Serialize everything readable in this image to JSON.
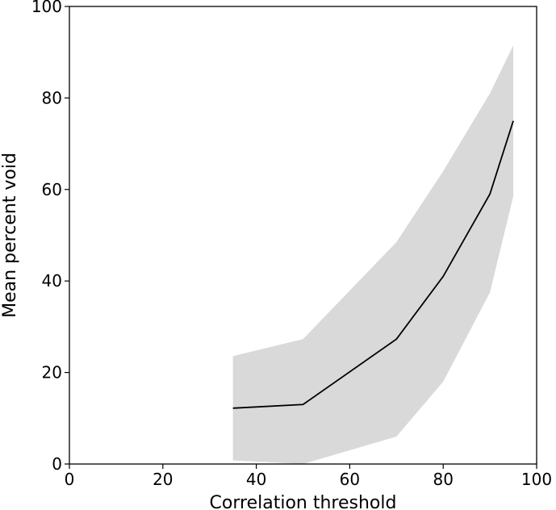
{
  "chart_data": {
    "type": "line",
    "xlabel": "Correlation threshold",
    "ylabel": "Mean percent void",
    "xlim": [
      0,
      100
    ],
    "ylim": [
      0,
      100
    ],
    "x_ticks": [
      0,
      20,
      40,
      60,
      80,
      100
    ],
    "y_ticks": [
      0,
      20,
      40,
      60,
      80,
      100
    ],
    "grid": false,
    "series": [
      {
        "x": [
          35,
          50,
          70,
          80,
          90,
          95
        ],
        "y": [
          12.2,
          13.0,
          27.3,
          41.0,
          59.0,
          75.0
        ],
        "band_upper": [
          23.6,
          27.3,
          48.5,
          64.0,
          81.0,
          91.5
        ],
        "band_lower": [
          0.8,
          -0.5,
          6.0,
          18.0,
          37.5,
          58.5
        ]
      }
    ],
    "colors": {
      "line": "#000000",
      "band": "#d9d9d9",
      "axes": "#000000"
    }
  }
}
